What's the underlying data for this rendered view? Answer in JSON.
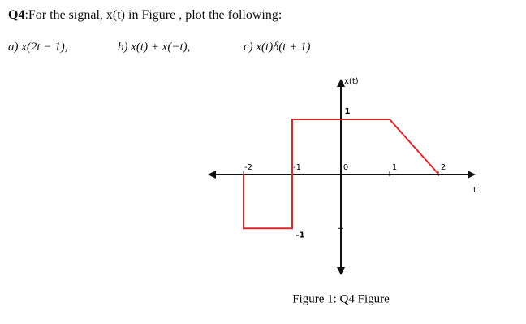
{
  "question": {
    "label": "Q4",
    "prompt": ":For the signal, x(t) in Figure , plot the following:",
    "parts": [
      "a) x(2t − 1),",
      "b) x(t) + x(−t),",
      "c) x(t)δ(t + 1)"
    ]
  },
  "figure": {
    "type": "line",
    "caption": "Figure 1: Q4 Figure",
    "x_label": "t",
    "y_label": "x(t)",
    "x": [
      -2,
      -2,
      -1,
      -1,
      1,
      2
    ],
    "values": [
      0,
      -1,
      -1,
      1,
      1,
      0
    ],
    "color": "#d9272e",
    "xlim": [
      -2.7,
      2.7
    ],
    "ylim": [
      -1.8,
      1.7
    ],
    "xticks": [
      -2,
      -1,
      0,
      1,
      2
    ],
    "yticks": [
      1,
      -1
    ]
  }
}
